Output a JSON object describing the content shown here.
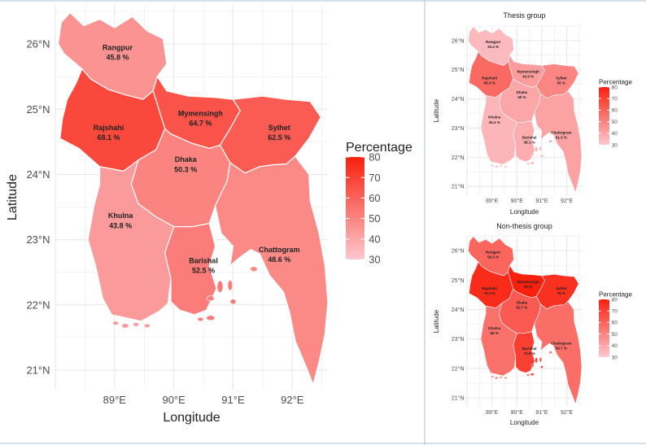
{
  "main_map": {
    "xlabel": "Longitude",
    "ylabel": "Latitude",
    "x_ticks": [
      "89°E",
      "90°E",
      "91°E",
      "92°E"
    ],
    "y_ticks": [
      "26°N",
      "25°N",
      "24°N",
      "23°N",
      "22°N",
      "21°N"
    ],
    "legend_title": "Percentage",
    "legend_ticks": [
      "80",
      "70",
      "60",
      "50",
      "40",
      "30"
    ],
    "divisions": [
      {
        "id": "rangpur",
        "name": "Rangpur",
        "value_label": "45.8 %",
        "value": 45.8
      },
      {
        "id": "rajshahi",
        "name": "Rajshahi",
        "value_label": "68.1 %",
        "value": 68.1
      },
      {
        "id": "mymensingh",
        "name": "Mymensingh",
        "value_label": "64.7 %",
        "value": 64.7
      },
      {
        "id": "sylhet",
        "name": "Sylhet",
        "value_label": "62.5 %",
        "value": 62.5
      },
      {
        "id": "dhaka",
        "name": "Dhaka",
        "value_label": "50.3 %",
        "value": 50.3
      },
      {
        "id": "khulna",
        "name": "Khulna",
        "value_label": "43.8 %",
        "value": 43.8
      },
      {
        "id": "barishal",
        "name": "Barishal",
        "value_label": "52.5 %",
        "value": 52.5
      },
      {
        "id": "chattogram",
        "name": "Chattogram",
        "value_label": "48.6 %",
        "value": 48.6
      }
    ]
  },
  "thesis_map": {
    "title": "Thesis group",
    "xlabel": "Longitude",
    "ylabel": "Latitude",
    "x_ticks": [
      "89°E",
      "90°E",
      "91°E",
      "92°E"
    ],
    "y_ticks": [
      "26°N",
      "25°N",
      "24°N",
      "23°N",
      "22°N",
      "21°N"
    ],
    "legend_title": "Percentage",
    "legend_ticks": [
      "80",
      "70",
      "60",
      "50",
      "40",
      "30"
    ],
    "divisions": [
      {
        "id": "rangpur",
        "name": "Rangpur",
        "value_label": "34.4 %",
        "value": 34.4
      },
      {
        "id": "rajshahi",
        "name": "Rajshahi",
        "value_label": "58.3 %",
        "value": 58.3
      },
      {
        "id": "mymensingh",
        "name": "Mymensingh",
        "value_label": "42.9 %",
        "value": 42.9
      },
      {
        "id": "sylhet",
        "name": "Sylhet",
        "value_label": "50 %",
        "value": 50
      },
      {
        "id": "dhaka",
        "name": "Dhaka",
        "value_label": "40 %",
        "value": 40
      },
      {
        "id": "khulna",
        "name": "Khulna",
        "value_label": "35.4 %",
        "value": 35.4
      },
      {
        "id": "barishal",
        "name": "Barishal",
        "value_label": "38.1 %",
        "value": 38.1
      },
      {
        "id": "chattogram",
        "name": "Chattogram",
        "value_label": "41.3 %",
        "value": 41.3
      }
    ]
  },
  "nonthesis_map": {
    "title": "Non-thesis group",
    "xlabel": "Longitude",
    "ylabel": "Latitude",
    "x_ticks": [
      "89°E",
      "90°E",
      "91°E",
      "92°E"
    ],
    "y_ticks": [
      "26°N",
      "25°N",
      "24°N",
      "23°N",
      "22°N",
      "21°N"
    ],
    "legend_title": "Percentage",
    "legend_ticks": [
      "80",
      "70",
      "60",
      "50",
      "40",
      "30"
    ],
    "divisions": [
      {
        "id": "rangpur",
        "name": "Rangpur",
        "value_label": "59.3 %",
        "value": 59.3
      },
      {
        "id": "rajshahi",
        "name": "Rajshahi",
        "value_label": "76.3 %",
        "value": 76.3
      },
      {
        "id": "mymensingh",
        "name": "Mymensingh",
        "value_label": "80 %",
        "value": 80
      },
      {
        "id": "sylhet",
        "name": "Sylhet",
        "value_label": "75 %",
        "value": 75
      },
      {
        "id": "dhaka",
        "name": "Dhaka",
        "value_label": "62.7 %",
        "value": 62.7
      },
      {
        "id": "khulna",
        "name": "Khulna",
        "value_label": "56 %",
        "value": 56
      },
      {
        "id": "barishal",
        "name": "Barishal",
        "value_label": "70.6 %",
        "value": 70.6
      },
      {
        "id": "chattogram",
        "name": "Chattogram",
        "value_label": "56.7 %",
        "value": 56.7
      }
    ]
  },
  "colors": {
    "scale_low": "#fcc8cf",
    "scale_high": "#f9200e",
    "scale_min": 30,
    "scale_max": 80,
    "grid": "#e6e6e6",
    "divider": "#a9c2d8",
    "region_border": "#ffffff"
  }
}
